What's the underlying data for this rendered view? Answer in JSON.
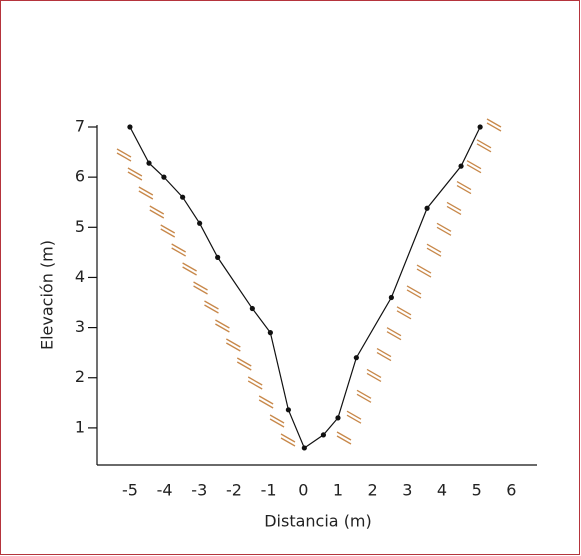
{
  "chart_data": {
    "type": "line",
    "x_label": "Distancia (m)",
    "y_label": "Elevación (m)",
    "x": [
      -5,
      -4.45,
      -4.02,
      -3.48,
      -2.99,
      -2.47,
      -1.47,
      -0.95,
      -0.43,
      0.03,
      0.58,
      1.0,
      1.53,
      2.54,
      3.57,
      4.55,
      5.1
    ],
    "values": [
      7,
      6.28,
      6.0,
      5.6,
      5.08,
      4.4,
      3.38,
      2.9,
      1.36,
      0.6,
      0.86,
      1.2,
      2.4,
      3.6,
      5.38,
      6.22,
      7
    ],
    "color": "#111111",
    "xlim": [
      -5.95,
      6.74
    ],
    "xticks": [
      -5,
      -4,
      -3,
      -2,
      -1,
      0,
      1,
      2,
      3,
      4,
      5,
      6
    ],
    "ylim": [
      0.26,
      7.0
    ],
    "yticks": [
      1,
      2,
      3,
      4,
      5,
      6,
      7
    ]
  }
}
